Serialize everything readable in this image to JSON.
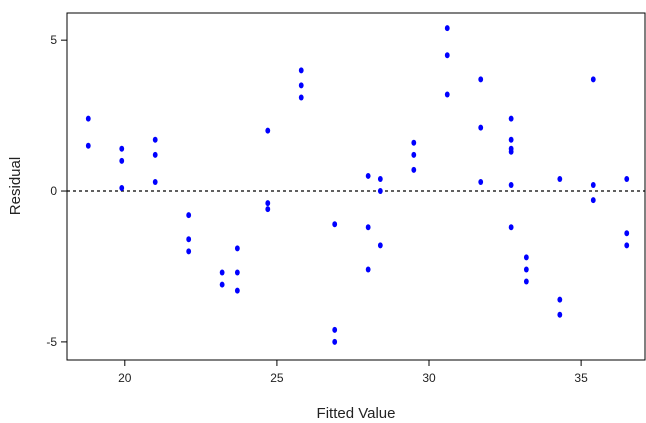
{
  "chart_data": {
    "type": "scatter",
    "title": "",
    "xlabel": "Fitted Value",
    "ylabel": "Residual",
    "xlim": [
      18.1,
      37.1
    ],
    "ylim": [
      -5.6,
      5.9
    ],
    "xticks": [
      20,
      25,
      30,
      35
    ],
    "yticks": [
      -5,
      0,
      5
    ],
    "grid": false,
    "legend": "none",
    "reference_line": {
      "y": 0,
      "style": "dotted"
    },
    "point_color": "#0000ff",
    "series": [
      {
        "points": [
          {
            "x": 18.8,
            "y": 2.4
          },
          {
            "x": 18.8,
            "y": 1.5
          },
          {
            "x": 19.9,
            "y": 1.4
          },
          {
            "x": 19.9,
            "y": 1.0
          },
          {
            "x": 19.9,
            "y": 0.1
          },
          {
            "x": 21.0,
            "y": 1.7
          },
          {
            "x": 21.0,
            "y": 1.2
          },
          {
            "x": 21.0,
            "y": 0.3
          },
          {
            "x": 22.1,
            "y": -0.8
          },
          {
            "x": 22.1,
            "y": -1.6
          },
          {
            "x": 22.1,
            "y": -2.0
          },
          {
            "x": 23.2,
            "y": -2.7
          },
          {
            "x": 23.2,
            "y": -3.1
          },
          {
            "x": 23.7,
            "y": -1.9
          },
          {
            "x": 23.7,
            "y": -2.7
          },
          {
            "x": 23.7,
            "y": -3.3
          },
          {
            "x": 24.7,
            "y": 2.0
          },
          {
            "x": 24.7,
            "y": -0.4
          },
          {
            "x": 24.7,
            "y": -0.6
          },
          {
            "x": 25.8,
            "y": 4.0
          },
          {
            "x": 25.8,
            "y": 3.5
          },
          {
            "x": 25.8,
            "y": 3.1
          },
          {
            "x": 26.9,
            "y": -1.1
          },
          {
            "x": 26.9,
            "y": -4.6
          },
          {
            "x": 26.9,
            "y": -5.0
          },
          {
            "x": 28.0,
            "y": 0.5
          },
          {
            "x": 28.0,
            "y": -1.2
          },
          {
            "x": 28.0,
            "y": -2.6
          },
          {
            "x": 28.4,
            "y": 0.4
          },
          {
            "x": 28.4,
            "y": 0.0
          },
          {
            "x": 28.4,
            "y": -1.8
          },
          {
            "x": 29.5,
            "y": 1.6
          },
          {
            "x": 29.5,
            "y": 1.2
          },
          {
            "x": 29.5,
            "y": 0.7
          },
          {
            "x": 30.6,
            "y": 5.4
          },
          {
            "x": 30.6,
            "y": 4.5
          },
          {
            "x": 30.6,
            "y": 3.2
          },
          {
            "x": 31.7,
            "y": 3.7
          },
          {
            "x": 31.7,
            "y": 2.1
          },
          {
            "x": 31.7,
            "y": 0.3
          },
          {
            "x": 32.7,
            "y": 2.4
          },
          {
            "x": 32.7,
            "y": 1.7
          },
          {
            "x": 32.7,
            "y": 1.4
          },
          {
            "x": 32.7,
            "y": 1.3
          },
          {
            "x": 32.7,
            "y": 0.2
          },
          {
            "x": 32.7,
            "y": -1.2
          },
          {
            "x": 33.2,
            "y": -2.2
          },
          {
            "x": 33.2,
            "y": -2.6
          },
          {
            "x": 33.2,
            "y": -3.0
          },
          {
            "x": 34.3,
            "y": 0.4
          },
          {
            "x": 34.3,
            "y": -3.6
          },
          {
            "x": 34.3,
            "y": -4.1
          },
          {
            "x": 35.4,
            "y": 3.7
          },
          {
            "x": 35.4,
            "y": 0.2
          },
          {
            "x": 35.4,
            "y": -0.3
          },
          {
            "x": 36.5,
            "y": 0.4
          },
          {
            "x": 36.5,
            "y": -1.4
          },
          {
            "x": 36.5,
            "y": -1.8
          }
        ]
      }
    ]
  }
}
